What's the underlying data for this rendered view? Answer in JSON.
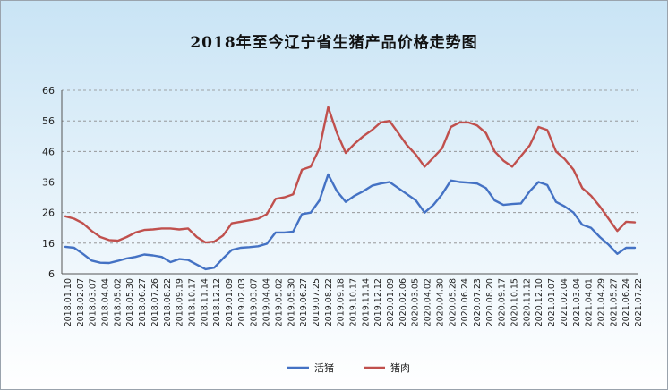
{
  "chart_data": {
    "type": "line",
    "title": "2018年至今辽宁省生猪产品价格走势图",
    "xlabel": "",
    "ylabel": "",
    "ylim": [
      6,
      66
    ],
    "yticks": [
      6,
      16,
      26,
      36,
      46,
      56,
      66
    ],
    "grid": "horizontal-dashed",
    "legend": "bottom",
    "x_ticks": [
      "2018.01.10",
      "2018.02.07",
      "2018.03.07",
      "2018.04.04",
      "2018.05.02",
      "2018.05.30",
      "2018.06.27",
      "2018.07.26",
      "2018.08.22",
      "2018.09.19",
      "2018.10.17",
      "2018.11.14",
      "2018.12.12",
      "2019.01.09",
      "2019.02.03",
      "2019.03.07",
      "2019.04.04",
      "2019.05.02",
      "2019.05.30",
      "2019.06.27",
      "2019.07.25",
      "2019.08.22",
      "2019.09.18",
      "2019.10.17",
      "2019.11.14",
      "2019.12.12",
      "2020.01.09",
      "2020.02.06",
      "2020.03.05",
      "2020.04.02",
      "2020.04.30",
      "2020.05.28",
      "2020.06.24",
      "2020.07.23",
      "2020.08.20",
      "2020.09.17",
      "2020.10.15",
      "2020.11.12",
      "2020.12.10",
      "2021.01.07",
      "2021.02.04",
      "2021.03.04",
      "2021.04.01",
      "2021.04.29",
      "2021.05.27",
      "2021.06.24",
      "2021.07.22"
    ],
    "series": [
      {
        "name": "活猪",
        "color": "#4472c4",
        "points": [
          [
            0,
            14.8
          ],
          [
            1,
            14.5
          ],
          [
            2,
            12.5
          ],
          [
            3,
            10.3
          ],
          [
            4,
            9.6
          ],
          [
            5,
            9.5
          ],
          [
            6,
            10.2
          ],
          [
            7,
            11
          ],
          [
            8,
            11.5
          ],
          [
            9,
            12.3
          ],
          [
            10,
            12
          ],
          [
            11,
            11.5
          ],
          [
            12,
            9.8
          ],
          [
            13,
            10.8
          ],
          [
            14,
            10.5
          ],
          [
            15,
            9
          ],
          [
            16,
            7.5
          ],
          [
            17,
            8
          ],
          [
            18,
            11
          ],
          [
            19,
            13.8
          ],
          [
            20,
            14.5
          ],
          [
            21,
            14.7
          ],
          [
            22,
            15
          ],
          [
            23,
            15.8
          ],
          [
            24,
            19.5
          ],
          [
            25,
            19.5
          ],
          [
            26,
            19.8
          ],
          [
            27,
            25.5
          ],
          [
            28,
            26
          ],
          [
            29,
            30
          ],
          [
            30,
            38.5
          ],
          [
            31,
            33
          ],
          [
            32,
            29.5
          ],
          [
            33,
            31.5
          ],
          [
            34,
            33
          ],
          [
            35,
            34.8
          ],
          [
            36,
            35.5
          ],
          [
            37,
            36
          ],
          [
            38,
            34
          ],
          [
            39,
            32
          ],
          [
            40,
            30
          ],
          [
            41,
            26
          ],
          [
            42,
            28.5
          ],
          [
            43,
            32
          ],
          [
            44,
            36.5
          ],
          [
            45,
            36
          ],
          [
            46,
            35.8
          ],
          [
            47,
            35.5
          ],
          [
            48,
            34
          ],
          [
            49,
            30
          ],
          [
            50,
            28.5
          ],
          [
            51,
            28.8
          ],
          [
            52,
            29
          ],
          [
            53,
            33
          ],
          [
            54,
            36
          ],
          [
            55,
            35
          ],
          [
            56,
            29.5
          ],
          [
            57,
            28
          ],
          [
            58,
            26
          ],
          [
            59,
            22
          ],
          [
            60,
            21
          ],
          [
            61,
            18
          ],
          [
            62,
            15.5
          ],
          [
            63,
            12.5
          ],
          [
            64,
            14.5
          ],
          [
            65,
            14.5
          ]
        ]
      },
      {
        "name": "猪肉",
        "color": "#c0504d",
        "points": [
          [
            0,
            24.8
          ],
          [
            1,
            24
          ],
          [
            2,
            22.5
          ],
          [
            3,
            20
          ],
          [
            4,
            18
          ],
          [
            5,
            17
          ],
          [
            6,
            16.8
          ],
          [
            7,
            18
          ],
          [
            8,
            19.5
          ],
          [
            9,
            20.3
          ],
          [
            10,
            20.5
          ],
          [
            11,
            20.8
          ],
          [
            12,
            20.8
          ],
          [
            13,
            20.5
          ],
          [
            14,
            20.8
          ],
          [
            15,
            18
          ],
          [
            16,
            16.2
          ],
          [
            17,
            16.5
          ],
          [
            18,
            18.5
          ],
          [
            19,
            22.5
          ],
          [
            20,
            23
          ],
          [
            21,
            23.5
          ],
          [
            22,
            24
          ],
          [
            23,
            25.5
          ],
          [
            24,
            30.5
          ],
          [
            25,
            31
          ],
          [
            26,
            32
          ],
          [
            27,
            40
          ],
          [
            28,
            41
          ],
          [
            29,
            47
          ],
          [
            30,
            60.5
          ],
          [
            31,
            52
          ],
          [
            32,
            45.5
          ],
          [
            33,
            48.5
          ],
          [
            34,
            51
          ],
          [
            35,
            53
          ],
          [
            36,
            55.5
          ],
          [
            37,
            56
          ],
          [
            38,
            52
          ],
          [
            39,
            48
          ],
          [
            40,
            45
          ],
          [
            41,
            41
          ],
          [
            42,
            44
          ],
          [
            43,
            47
          ],
          [
            44,
            54
          ],
          [
            45,
            55.5
          ],
          [
            46,
            55.5
          ],
          [
            47,
            54.5
          ],
          [
            48,
            52
          ],
          [
            49,
            46
          ],
          [
            50,
            43
          ],
          [
            51,
            41
          ],
          [
            52,
            44.5
          ],
          [
            53,
            48
          ],
          [
            54,
            54
          ],
          [
            55,
            53
          ],
          [
            56,
            46
          ],
          [
            57,
            43.5
          ],
          [
            58,
            40
          ],
          [
            59,
            34
          ],
          [
            60,
            31.5
          ],
          [
            61,
            28
          ],
          [
            62,
            24
          ],
          [
            63,
            20
          ],
          [
            64,
            23
          ],
          [
            65,
            22.8
          ]
        ]
      }
    ]
  }
}
